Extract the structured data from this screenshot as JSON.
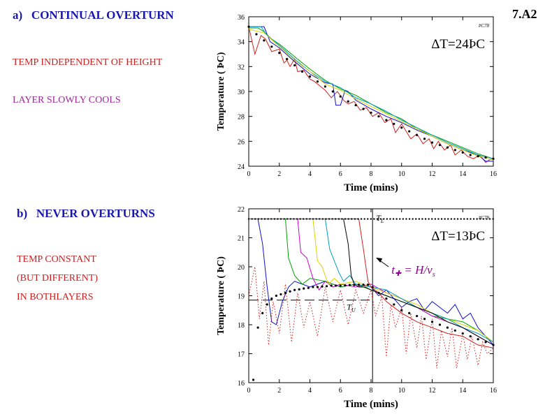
{
  "slide_id": "7.A2",
  "panel_a": {
    "heading_letter": "a)",
    "heading": "CONTINUAL OVERTURN",
    "note1": "TEMP INDEPENDENT OF HEIGHT",
    "note2": "LAYER SLOWLY COOLS",
    "note1_color": "#cc2020",
    "note2_color": "#9a2a9a"
  },
  "panel_b": {
    "heading_letter": "b)",
    "heading": "NEVER OVERTURNS",
    "notes": [
      "TEMP CONSTANT",
      "(BUT DIFFERENT)",
      "IN BOTHLAYERS"
    ],
    "note_color": "#cc2020"
  },
  "colors": {
    "heading": "#1818b0",
    "series": [
      "#d02020",
      "#1010d0",
      "#00a000",
      "#00a0c0",
      "#e0d000",
      "#d000d0",
      "#000000"
    ],
    "annotation_magenta": "#900090"
  },
  "chart_data": [
    {
      "type": "line",
      "run_id": "#C78",
      "annotation": "ΔT=24ÞC",
      "xlabel": "Time  (mins)",
      "ylabel": "Temperature  ( ÞC)",
      "xlim": [
        0,
        16
      ],
      "ylim": [
        24,
        36
      ],
      "xticks": [
        0,
        2,
        4,
        6,
        8,
        10,
        12,
        14,
        16
      ],
      "yticks": [
        24,
        26,
        28,
        30,
        32,
        34,
        36
      ],
      "grid": false,
      "series": [
        {
          "color": "#d02020",
          "x": [
            0,
            0.4,
            0.8,
            1.1,
            1.5,
            2,
            2.3,
            2.5,
            2.7,
            3,
            3.2,
            3.6,
            4,
            4.3,
            4.7,
            5,
            5.4,
            5.8,
            6.2,
            6.5,
            6.9,
            7.3,
            7.7,
            8.1,
            8.5,
            8.9,
            9.3,
            9.6,
            10,
            10.3,
            10.6,
            11,
            11.4,
            11.8,
            12.1,
            12.4,
            12.8,
            13.2,
            13.5,
            13.9,
            14.3,
            14.7,
            15.1,
            15.5,
            16
          ],
          "values": [
            35.2,
            33.0,
            34.5,
            34.2,
            33.2,
            33.4,
            32.3,
            32.5,
            32.0,
            32.6,
            31.6,
            31.7,
            31.0,
            30.8,
            30.4,
            30.1,
            29.5,
            30.0,
            29.3,
            29.0,
            29.2,
            28.5,
            28.7,
            28.0,
            28.3,
            27.5,
            27.8,
            26.7,
            27.4,
            26.8,
            26.2,
            26.6,
            25.8,
            26.2,
            25.4,
            26.0,
            25.3,
            25.7,
            24.9,
            25.3,
            24.8,
            24.6,
            24.9,
            24.3,
            24.7
          ]
        },
        {
          "color": "#1010d0",
          "x": [
            0,
            0.5,
            1.0,
            1.4,
            2,
            3,
            4,
            5,
            5.5,
            5.7,
            6.0,
            6.3,
            6.5,
            7,
            8,
            9,
            10,
            11,
            12,
            13,
            14,
            15,
            15.5,
            16
          ],
          "values": [
            35.2,
            35.2,
            35.2,
            34.0,
            33.5,
            32.4,
            31.4,
            30.7,
            30.6,
            28.9,
            28.9,
            30.1,
            30.0,
            29.3,
            28.6,
            28.0,
            27.5,
            26.9,
            26.4,
            25.8,
            25.3,
            24.9,
            24.4,
            24.4
          ]
        },
        {
          "color": "#00a000",
          "x": [
            0,
            0.6,
            1.0,
            1.5,
            2,
            3,
            4,
            5,
            6,
            7,
            8,
            9,
            10,
            11,
            12,
            13,
            14,
            15,
            16
          ],
          "values": [
            35.1,
            35.1,
            34.8,
            34.2,
            33.8,
            32.8,
            31.8,
            30.9,
            30.2,
            29.7,
            29.0,
            28.3,
            27.8,
            27.0,
            26.5,
            26.0,
            25.5,
            25.0,
            24.6
          ]
        },
        {
          "color": "#00a0c0",
          "x": [
            0,
            0.8,
            1.2,
            2,
            3,
            4,
            5,
            6,
            7,
            8,
            9,
            10,
            11,
            12,
            13,
            14,
            15,
            16
          ],
          "values": [
            35.2,
            35.2,
            34.5,
            33.7,
            32.6,
            31.6,
            30.8,
            30.3,
            29.5,
            29.0,
            28.4,
            27.7,
            27.1,
            26.5,
            25.9,
            25.4,
            24.9,
            24.6
          ]
        },
        {
          "color": "#e0d000",
          "x": [
            0,
            1,
            2,
            3,
            4,
            5,
            6,
            7,
            8,
            9,
            10,
            11,
            12,
            13,
            14,
            15,
            16
          ],
          "values": [
            35.0,
            34.7,
            33.6,
            32.5,
            31.6,
            30.6,
            30.1,
            29.4,
            28.8,
            28.2,
            27.6,
            27.0,
            26.4,
            25.8,
            25.3,
            24.8,
            24.5
          ]
        },
        {
          "color": "#000000",
          "style": "dots",
          "x": [
            0,
            0.5,
            1,
            1.5,
            2,
            2.5,
            3,
            3.5,
            4,
            4.5,
            5,
            5.5,
            6,
            6.5,
            7,
            7.5,
            8,
            8.5,
            9,
            9.5,
            10,
            10.5,
            11,
            11.5,
            12,
            12.5,
            13,
            13.5,
            14,
            14.5,
            15,
            15.5,
            16
          ],
          "values": [
            35.2,
            34.6,
            34.1,
            33.6,
            33.1,
            32.6,
            32.1,
            31.6,
            31.2,
            30.8,
            30.4,
            30.0,
            29.6,
            29.2,
            28.9,
            28.6,
            28.3,
            28.0,
            27.7,
            27.4,
            27.1,
            26.8,
            26.5,
            26.2,
            25.9,
            25.7,
            25.5,
            25.3,
            25.1,
            24.9,
            24.8,
            24.7,
            24.6
          ]
        }
      ]
    },
    {
      "type": "line",
      "run_id": "#C79",
      "annotation": "ΔT=13ÞC",
      "xlabel": "Time  (mins)",
      "ylabel": "Temperature  ( ÞC)",
      "xlim": [
        0,
        16
      ],
      "ylim": [
        16,
        22
      ],
      "xticks": [
        0,
        2,
        4,
        6,
        8,
        10,
        12,
        14,
        16
      ],
      "yticks": [
        16,
        17,
        18,
        19,
        20,
        21,
        22
      ],
      "grid": false,
      "label_TL": "T",
      "label_TL_sub": "L",
      "label_TU": "T",
      "label_TU_sub": "U",
      "formula_lhs": "t",
      "formula_lhs_sub": "✚",
      "formula_rhs": "= H/v",
      "formula_rhs_sub": "s",
      "vline_x": 8.1,
      "hline_upper": 21.65,
      "hline_lower": 18.85,
      "series": [
        {
          "color": "#1010d0",
          "x": [
            0,
            0.6,
            0.9,
            1.2,
            1.5,
            1.8,
            2.2,
            2.6,
            3.0,
            3.5,
            4,
            5,
            6,
            7,
            8,
            8.5,
            9,
            9.5,
            10,
            10.5,
            11,
            11.5,
            12,
            12.5,
            13,
            13.5,
            14,
            14.5,
            15,
            15.5,
            16
          ],
          "values": [
            21.65,
            21.65,
            20.8,
            19.3,
            18.1,
            18.0,
            18.8,
            19.3,
            19.5,
            19.4,
            19.3,
            19.5,
            19.3,
            19.4,
            19.3,
            19.0,
            19.2,
            18.9,
            18.6,
            18.8,
            18.9,
            18.5,
            18.8,
            18.6,
            18.4,
            18.7,
            18.2,
            18.4,
            17.9,
            17.6,
            17.3
          ]
        },
        {
          "color": "#00a000",
          "x": [
            0,
            2.4,
            2.6,
            3.0,
            3.5,
            4,
            5,
            6,
            7,
            8,
            9,
            10,
            11,
            12,
            13,
            14,
            15,
            16
          ],
          "values": [
            21.65,
            21.65,
            20.3,
            19.7,
            19.4,
            19.6,
            19.5,
            19.3,
            19.4,
            19.2,
            19.0,
            18.8,
            18.6,
            18.3,
            18.2,
            18.1,
            17.8,
            17.4
          ]
        },
        {
          "color": "#d000d0",
          "x": [
            0,
            3.2,
            3.4,
            3.8,
            4.2,
            4.6,
            5,
            5.5,
            6,
            7,
            8,
            9,
            10,
            11,
            12,
            13,
            14,
            15,
            16
          ],
          "values": [
            21.65,
            21.65,
            20.5,
            20.3,
            19.6,
            19.2,
            19.5,
            19.3,
            19.4,
            19.3,
            19.4,
            19.1,
            18.9,
            18.6,
            18.3,
            18.1,
            17.9,
            17.6,
            17.3
          ]
        },
        {
          "color": "#e0d000",
          "x": [
            0,
            4.2,
            4.5,
            4.8,
            5.2,
            5.6,
            6,
            7,
            8,
            9,
            10,
            11,
            12,
            13,
            14,
            15,
            16
          ],
          "values": [
            21.65,
            21.65,
            20.2,
            20.0,
            19.4,
            19.6,
            19.4,
            19.5,
            19.3,
            19.1,
            18.9,
            18.7,
            18.4,
            18.2,
            18.0,
            17.8,
            17.4
          ]
        },
        {
          "color": "#00a0c0",
          "x": [
            0,
            5.0,
            5.3,
            5.6,
            5.9,
            6.2,
            6.6,
            7,
            8,
            9,
            10,
            11,
            12,
            13,
            14,
            15,
            16
          ],
          "values": [
            21.65,
            21.65,
            20.6,
            20.2,
            19.8,
            19.5,
            19.7,
            19.4,
            19.3,
            19.2,
            18.9,
            18.6,
            18.4,
            18.2,
            17.9,
            17.7,
            17.4
          ]
        },
        {
          "color": "#000000",
          "x": [
            0,
            6.2,
            6.5,
            6.7,
            6.9,
            7.2,
            7.6,
            8,
            9,
            10,
            11,
            12,
            13,
            14,
            15,
            16
          ],
          "values": [
            21.65,
            21.65,
            20.8,
            19.7,
            19.4,
            19.3,
            19.3,
            19.2,
            19.0,
            18.8,
            18.6,
            18.4,
            18.1,
            17.9,
            17.6,
            17.3
          ]
        },
        {
          "color": "#d02020",
          "x": [
            0,
            7.2,
            7.5,
            7.8,
            8.0,
            8.5,
            9,
            10,
            11,
            12,
            13,
            14,
            15,
            16
          ],
          "values": [
            21.65,
            21.65,
            20.6,
            19.5,
            19.3,
            19.1,
            18.8,
            18.4,
            18.1,
            17.9,
            17.7,
            17.6,
            17.3,
            17.2
          ]
        },
        {
          "color": "#d02020",
          "style": "dotted",
          "x": [
            0,
            0.4,
            0.7,
            1.0,
            1.3,
            1.6,
            2.0,
            2.4,
            2.8,
            3.2,
            3.6,
            4.0,
            4.5,
            5,
            5.5,
            6,
            6.5,
            7,
            7.5,
            8,
            8.3,
            8.7,
            9.0,
            9.3,
            9.6,
            10.0,
            10.3,
            10.6,
            11.0,
            11.3,
            11.6,
            12.0,
            12.3,
            12.6,
            13.0,
            13.3,
            13.6,
            14.0,
            14.3,
            14.6,
            15.0,
            15.3,
            15.6,
            16
          ],
          "values": [
            19.0,
            20.0,
            18.2,
            19.5,
            17.3,
            18.8,
            17.7,
            19.4,
            17.4,
            19.1,
            17.9,
            18.8,
            17.6,
            19.3,
            18.1,
            19.2,
            18.0,
            19.2,
            18.4,
            19.2,
            18.3,
            19.0,
            16.9,
            18.7,
            17.9,
            18.6,
            17.0,
            18.4,
            17.2,
            18.3,
            16.8,
            18.2,
            16.5,
            17.8,
            16.9,
            17.9,
            16.5,
            17.7,
            16.8,
            17.6,
            16.6,
            17.4,
            17.0,
            17.2
          ]
        },
        {
          "color": "#000000",
          "style": "dots",
          "x": [
            0.3,
            0.6,
            0.9,
            1.2,
            1.5,
            1.8,
            2.1,
            2.4,
            2.7,
            3.0,
            3.3,
            3.6,
            3.9,
            4.2,
            4.5,
            4.8,
            5.1,
            5.4,
            5.7,
            6.0,
            6.3,
            6.6,
            6.9,
            7.2,
            7.5,
            7.8,
            8.1,
            8.5,
            9,
            9.5,
            10,
            10.5,
            11,
            11.5,
            12,
            12.5,
            13,
            13.5,
            14,
            14.5,
            15,
            15.5,
            16
          ],
          "values": [
            16.1,
            17.9,
            18.4,
            18.7,
            18.9,
            19.0,
            19.05,
            19.1,
            19.15,
            19.2,
            19.22,
            19.25,
            19.27,
            19.3,
            19.3,
            19.32,
            19.33,
            19.35,
            19.35,
            19.35,
            19.36,
            19.37,
            19.37,
            19.38,
            19.38,
            19.38,
            19.3,
            19.1,
            18.9,
            18.7,
            18.5,
            18.4,
            18.3,
            18.2,
            18.1,
            18.0,
            17.9,
            17.8,
            17.7,
            17.6,
            17.5,
            17.4,
            17.3
          ]
        }
      ]
    }
  ]
}
